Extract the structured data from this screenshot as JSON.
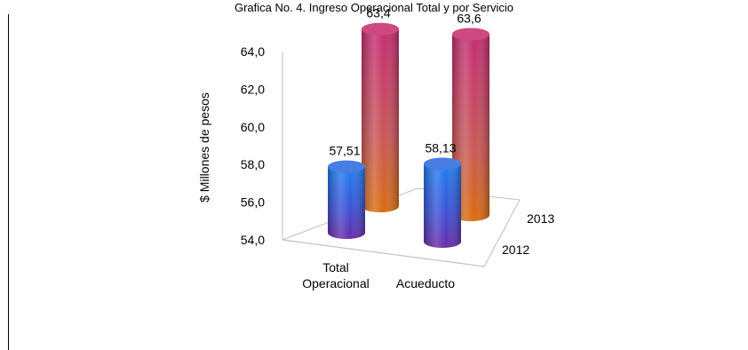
{
  "chart_data": {
    "type": "bar",
    "title": "Grafica No. 4. Ingreso Operacional Total y por Servicio",
    "xlabel": "",
    "ylabel": "$ Millones de pesos",
    "ylim": [
      54,
      64
    ],
    "yticks": [
      "54,0",
      "56,0",
      "58,0",
      "60,0",
      "62,0",
      "64,0"
    ],
    "categories": [
      "Total\nOperacional",
      "Acueducto"
    ],
    "depth_categories": [
      "2012",
      "2013"
    ],
    "series": [
      {
        "name": "2012",
        "values": [
          57.51,
          58.13
        ],
        "labels": [
          "57,51",
          "58,13"
        ],
        "color": "#2f6be0"
      },
      {
        "name": "2013",
        "values": [
          63.4,
          63.6
        ],
        "labels": [
          "63,4",
          "63,6"
        ],
        "color": "#c8306e"
      }
    ],
    "grid": false,
    "chart_style": "3d-cylinder"
  }
}
